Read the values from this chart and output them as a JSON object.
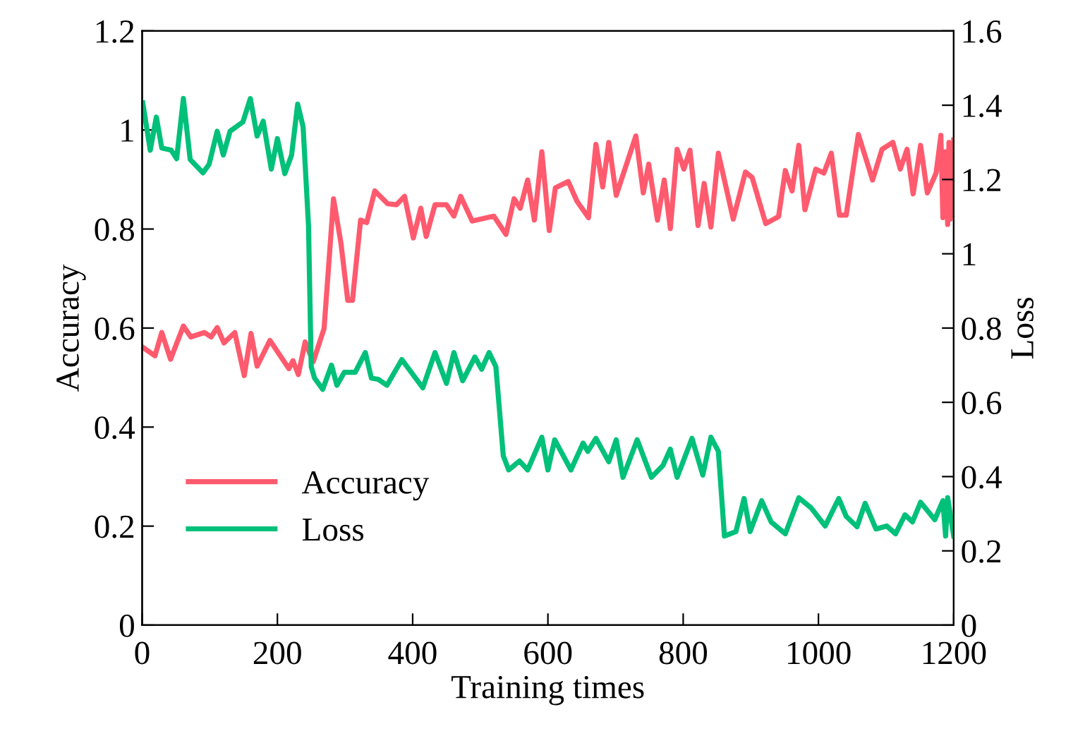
{
  "chart_data": {
    "type": "line",
    "xlabel": "Training times",
    "ylabel": "Accuracy",
    "y2label": "Loss",
    "xlim": [
      0,
      1200
    ],
    "xticks": [
      0,
      200,
      400,
      600,
      800,
      1000,
      1200
    ],
    "ylim": [
      0,
      1.2
    ],
    "yticks": [
      0,
      0.2,
      0.4,
      0.6,
      0.8,
      1,
      1.2
    ],
    "y2lim": [
      0,
      1.6
    ],
    "y2ticks": [
      0,
      0.2,
      0.4,
      0.6,
      0.8,
      1,
      1.2,
      1.4,
      1.6
    ],
    "grid": false,
    "legend": "bottom left",
    "marker": "none",
    "line_style": "solid",
    "series": [
      {
        "name": "Accuracy",
        "color": "#ff5a6e",
        "x": [
          1,
          19,
          29,
          42,
          61,
          72,
          92,
          102,
          111,
          121,
          137,
          151,
          161,
          170,
          189,
          217,
          223,
          231,
          241,
          253,
          269,
          283,
          294,
          304,
          311,
          323,
          332,
          344,
          363,
          376,
          388,
          401,
          412,
          420,
          433,
          450,
          461,
          471,
          488,
          520,
          538,
          550,
          559,
          570,
          580,
          591,
          602,
          611,
          630,
          643,
          660,
          671,
          681,
          690,
          701,
          730,
          741,
          749,
          762,
          772,
          781,
          791,
          801,
          810,
          822,
          831,
          841,
          852,
          874,
          892,
          902,
          922,
          941,
          951,
          961,
          971,
          980,
          996,
          1008,
          1019,
          1031,
          1041,
          1059,
          1080,
          1094,
          1110,
          1121,
          1131,
          1140,
          1151,
          1161,
          1174,
          1181,
          1184,
          1188,
          1191,
          1193,
          1195,
          1200
        ],
        "values": [
          0.561,
          0.544,
          0.591,
          0.537,
          0.604,
          0.582,
          0.591,
          0.582,
          0.601,
          0.57,
          0.591,
          0.504,
          0.589,
          0.523,
          0.575,
          0.518,
          0.534,
          0.506,
          0.572,
          0.532,
          0.599,
          0.861,
          0.771,
          0.656,
          0.656,
          0.818,
          0.813,
          0.877,
          0.851,
          0.849,
          0.866,
          0.782,
          0.842,
          0.785,
          0.849,
          0.849,
          0.826,
          0.866,
          0.816,
          0.826,
          0.789,
          0.861,
          0.842,
          0.899,
          0.818,
          0.956,
          0.797,
          0.883,
          0.896,
          0.856,
          0.823,
          0.971,
          0.885,
          0.975,
          0.868,
          0.988,
          0.873,
          0.931,
          0.818,
          0.899,
          0.801,
          0.961,
          0.921,
          0.959,
          0.807,
          0.892,
          0.804,
          0.953,
          0.82,
          0.915,
          0.904,
          0.811,
          0.825,
          0.918,
          0.877,
          0.969,
          0.839,
          0.921,
          0.913,
          0.953,
          0.828,
          0.828,
          0.991,
          0.899,
          0.961,
          0.975,
          0.921,
          0.961,
          0.871,
          0.969,
          0.873,
          0.913,
          0.989,
          0.823,
          0.956,
          0.809,
          0.975,
          0.82,
          0.98
        ]
      },
      {
        "name": "Loss",
        "color": "#00c07a",
        "axis": "y2",
        "x": [
          1,
          12,
          21,
          29,
          43,
          51,
          61,
          71,
          90,
          99,
          111,
          120,
          130,
          149,
          160,
          170,
          179,
          191,
          200,
          211,
          221,
          230,
          238,
          246,
          250,
          255,
          267,
          280,
          288,
          299,
          315,
          330,
          339,
          349,
          362,
          384,
          415,
          433,
          450,
          461,
          474,
          492,
          502,
          513,
          523,
          534,
          542,
          558,
          570,
          591,
          600,
          610,
          634,
          652,
          659,
          671,
          690,
          701,
          711,
          732,
          753,
          770,
          781,
          791,
          813,
          829,
          841,
          852,
          861,
          878,
          890,
          899,
          916,
          930,
          951,
          971,
          989,
          1010,
          1030,
          1041,
          1057,
          1069,
          1085,
          1101,
          1114,
          1128,
          1139,
          1151,
          1172,
          1184,
          1188,
          1191,
          1200
        ],
        "values": [
          1.406,
          1.279,
          1.368,
          1.285,
          1.279,
          1.256,
          1.418,
          1.254,
          1.218,
          1.241,
          1.33,
          1.266,
          1.33,
          1.355,
          1.418,
          1.317,
          1.357,
          1.228,
          1.31,
          1.216,
          1.266,
          1.403,
          1.342,
          1.076,
          0.696,
          0.665,
          0.635,
          0.7,
          0.646,
          0.681,
          0.681,
          0.734,
          0.665,
          0.662,
          0.646,
          0.715,
          0.639,
          0.734,
          0.651,
          0.734,
          0.658,
          0.722,
          0.689,
          0.734,
          0.696,
          0.456,
          0.418,
          0.442,
          0.418,
          0.506,
          0.418,
          0.499,
          0.418,
          0.49,
          0.468,
          0.503,
          0.44,
          0.499,
          0.398,
          0.499,
          0.398,
          0.43,
          0.474,
          0.398,
          0.503,
          0.404,
          0.506,
          0.468,
          0.24,
          0.252,
          0.341,
          0.252,
          0.335,
          0.278,
          0.246,
          0.343,
          0.316,
          0.267,
          0.341,
          0.293,
          0.265,
          0.328,
          0.259,
          0.267,
          0.246,
          0.297,
          0.278,
          0.331,
          0.284,
          0.335,
          0.24,
          0.343,
          0.24
        ]
      }
    ]
  }
}
